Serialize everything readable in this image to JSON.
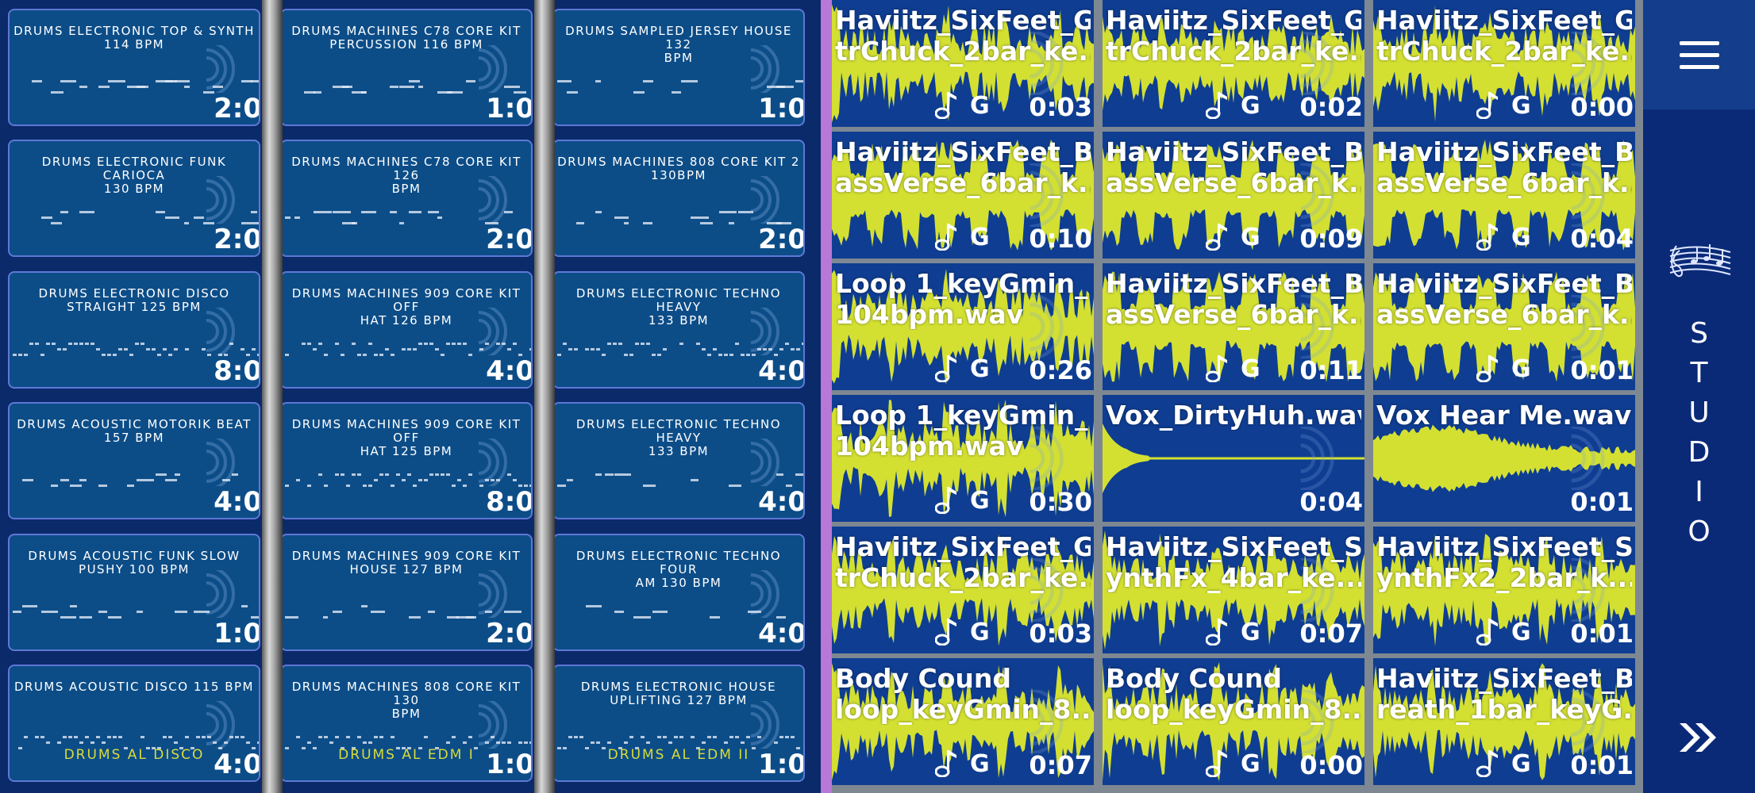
{
  "drum_patterns": [
    {
      "title": "DRUMS ELECTRONIC TOP & SYNTH\n114 BPM",
      "time": "2:0",
      "footer": ""
    },
    {
      "title": "DRUMS ELECTRONIC FUNK CARIOCA\n130 BPM",
      "time": "2:0",
      "footer": ""
    },
    {
      "title": "DRUMS ELECTRONIC DISCO\nSTRAIGHT 125 BPM",
      "time": "8:0",
      "footer": ""
    },
    {
      "title": "DRUMS ACOUSTIC MOTORIK BEAT\n157 BPM",
      "time": "4:0",
      "footer": ""
    },
    {
      "title": "DRUMS ACOUSTIC FUNK SLOW\nPUSHY 100 BPM",
      "time": "1:0",
      "footer": ""
    },
    {
      "title": "DRUMS ACOUSTIC DISCO 115 BPM",
      "time": "4:0",
      "footer": "DRUMS AL DISCO"
    },
    {
      "title": "DRUMS MACHINES C78 CORE KIT\nPERCUSSION 116 BPM",
      "time": "1:0",
      "footer": ""
    },
    {
      "title": "DRUMS MACHINES C78 CORE KIT 126\nBPM",
      "time": "2:0",
      "footer": ""
    },
    {
      "title": "DRUMS MACHINES 909 CORE KIT OFF\nHAT 126 BPM",
      "time": "4:0",
      "footer": ""
    },
    {
      "title": "DRUMS MACHINES 909 CORE KIT OFF\nHAT 125 BPM",
      "time": "8:0",
      "footer": ""
    },
    {
      "title": "DRUMS MACHINES 909 CORE KIT\nHOUSE 127 BPM",
      "time": "2:0",
      "footer": ""
    },
    {
      "title": "DRUMS MACHINES 808 CORE KIT 130\nBPM",
      "time": "1:0",
      "footer": "DRUMS AL EDM I"
    },
    {
      "title": "DRUMS SAMPLED JERSEY HOUSE 132\nBPM",
      "time": "1:0",
      "footer": ""
    },
    {
      "title": "DRUMS MACHINES 808 CORE KIT 2\n130BPM",
      "time": "2:0",
      "footer": ""
    },
    {
      "title": "DRUMS ELECTRONIC TECHNO HEAVY\n133 BPM",
      "time": "4:0",
      "footer": ""
    },
    {
      "title": "DRUMS ELECTRONIC TECHNO HEAVY\n133 BPM",
      "time": "4:0",
      "footer": ""
    },
    {
      "title": "DRUMS ELECTRONIC TECHNO FOUR\nAM 130 BPM",
      "time": "4:0",
      "footer": ""
    },
    {
      "title": "DRUMS ELECTRONIC HOUSE\nUPLIFTING 127 BPM",
      "time": "1:0",
      "footer": "DRUMS AL EDM II"
    }
  ],
  "clips": [
    {
      "name": "Haviitz_SixFeet_G\ntrChuck_2bar_ke...",
      "key": "G",
      "duration": "0:03",
      "note": true
    },
    {
      "name": "Haviitz_SixFeet_G\ntrChuck_2bar_ke...",
      "key": "G",
      "duration": "0:02",
      "note": true
    },
    {
      "name": "Haviitz_SixFeet_G\ntrChuck_2bar_ke...",
      "key": "G",
      "duration": "0:00",
      "note": true
    },
    {
      "name": "Haviitz_SixFeet_B\nassVerse_6bar_k...",
      "key": "G",
      "duration": "0:10",
      "note": true
    },
    {
      "name": "Haviitz_SixFeet_B\nassVerse_6bar_k...",
      "key": "G",
      "duration": "0:09",
      "note": true
    },
    {
      "name": "Haviitz_SixFeet_B\nassVerse_6bar_k...",
      "key": "G",
      "duration": "0:04",
      "note": true
    },
    {
      "name": "Loop 1_keyGmin_\n104bpm.wav",
      "key": "G",
      "duration": "0:26",
      "note": true
    },
    {
      "name": "Haviitz_SixFeet_B\nassVerse_6bar_k...",
      "key": "G",
      "duration": "0:11",
      "note": true
    },
    {
      "name": "Haviitz_SixFeet_B\nassVerse_6bar_k...",
      "key": "G",
      "duration": "0:01",
      "note": true
    },
    {
      "name": "Loop 1_keyGmin_\n104bpm.wav",
      "key": "G",
      "duration": "0:30",
      "note": true
    },
    {
      "name": "Vox_DirtyHuh.wav",
      "key": "",
      "duration": "0:04",
      "note": false
    },
    {
      "name": "Vox Hear Me.wav",
      "key": "",
      "duration": "0:01",
      "note": false
    },
    {
      "name": "Haviitz_SixFeet_G\ntrChuck_2bar_ke...",
      "key": "G",
      "duration": "0:03",
      "note": true
    },
    {
      "name": "Haviitz_SixFeet_S\nynthFx_4bar_ke...",
      "key": "G",
      "duration": "0:07",
      "note": true
    },
    {
      "name": "Haviitz_SixFeet_S\nynthFx2_2bar_k...",
      "key": "G",
      "duration": "0:01",
      "note": true
    },
    {
      "name": "Body Cound\nloop_keyGmin_8...",
      "key": "G",
      "duration": "0:07",
      "note": true
    },
    {
      "name": "Body Cound\nloop_keyGmin_8...",
      "key": "G",
      "duration": "0:00",
      "note": true
    },
    {
      "name": "Haviitz_SixFeet_B\nreath_1bar_keyG...",
      "key": "G",
      "duration": "0:01",
      "note": true
    }
  ],
  "sidebar": {
    "studio_label": "STUDIO",
    "menu_icon": "hamburger-menu-icon",
    "studio_icon": "music-staff-icon",
    "expand_icon": "double-chevron-right-icon"
  },
  "colors": {
    "background": "#07205d",
    "card": "#0c4d88",
    "card_border": "#5f77d6",
    "clip_background": "#0f3d92",
    "waveform": "#d3e032",
    "accent_divider": "#b878d6",
    "footer_text": "#d9dc38"
  }
}
